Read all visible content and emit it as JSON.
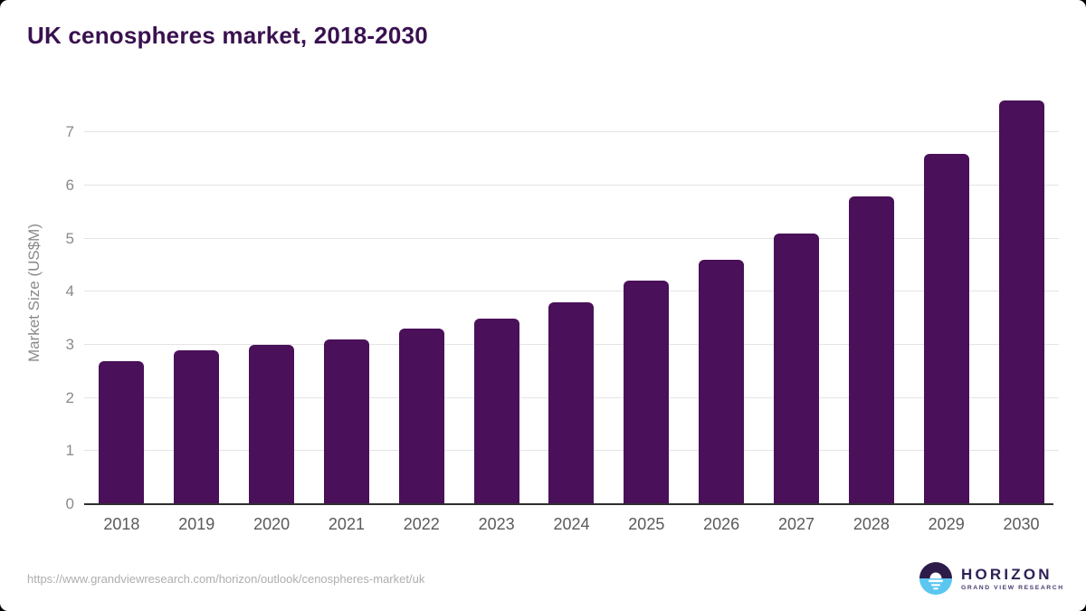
{
  "title": "UK cenospheres market, 2018-2030",
  "chart_data": {
    "type": "bar",
    "title": "UK cenospheres market, 2018-2030",
    "categories": [
      "2018",
      "2019",
      "2020",
      "2021",
      "2022",
      "2023",
      "2024",
      "2025",
      "2026",
      "2027",
      "2028",
      "2029",
      "2030"
    ],
    "values": [
      2.7,
      2.9,
      3.0,
      3.1,
      3.3,
      3.5,
      3.8,
      4.2,
      4.6,
      5.1,
      5.8,
      6.6,
      7.6
    ],
    "xlabel": "",
    "ylabel": "Market Size (US$M)",
    "ylim": [
      0,
      8
    ],
    "yticks": [
      0,
      1,
      2,
      3,
      4,
      5,
      6,
      7
    ],
    "grid": true,
    "legend": false,
    "bar_color": "#4a1059"
  },
  "footer": {
    "source_url": "https://www.grandviewresearch.com/horizon/outlook/cenospheres-market/uk",
    "logo": {
      "name": "HORIZON",
      "subtitle": "GRAND VIEW RESEARCH"
    }
  },
  "colors": {
    "title_text": "#3a1150",
    "bar": "#4a1059",
    "axis_line": "#2e2e2e",
    "gridline": "#e4e4e4",
    "tick_text": "#8a8a8a",
    "x_tick_text": "#5a5a5a",
    "url_text": "#aeaeae",
    "logo_purple": "#2e2157",
    "logo_circle_top": "#2d1b49",
    "logo_circle_bottom": "#5bc7f0"
  }
}
